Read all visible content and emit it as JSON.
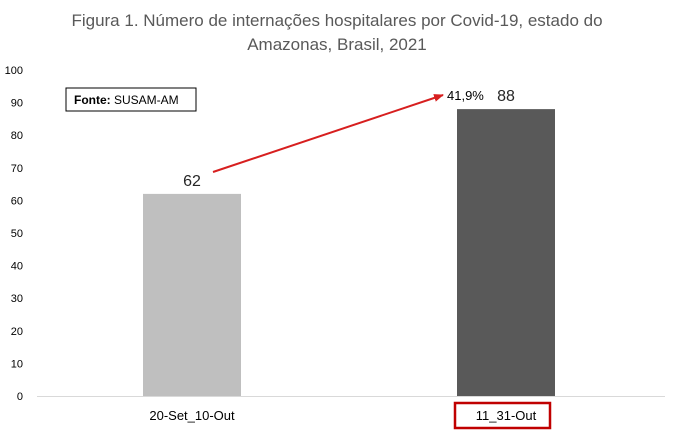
{
  "chart_data": {
    "type": "bar",
    "title_line1": "Figura 1. Número de internações hospitalares por Covid-19, estado do",
    "title_line2": "Amazonas, Brasil, 2021",
    "categories": [
      "20-Set_10-Out",
      "11_31-Out"
    ],
    "values": [
      62,
      88
    ],
    "ylim": [
      0,
      100
    ],
    "yticks": [
      0,
      10,
      20,
      30,
      40,
      50,
      60,
      70,
      80,
      90,
      100
    ],
    "grid": false,
    "bar_colors": [
      "#bfbfbf",
      "#595959"
    ],
    "highlight_category_index": 1,
    "highlight_color": "#c00000",
    "annotation": {
      "text": "41,9%",
      "arrow_color": "#d71f1f"
    },
    "source": {
      "label_bold": "Fonte:",
      "label": " SUSAM-AM"
    }
  }
}
